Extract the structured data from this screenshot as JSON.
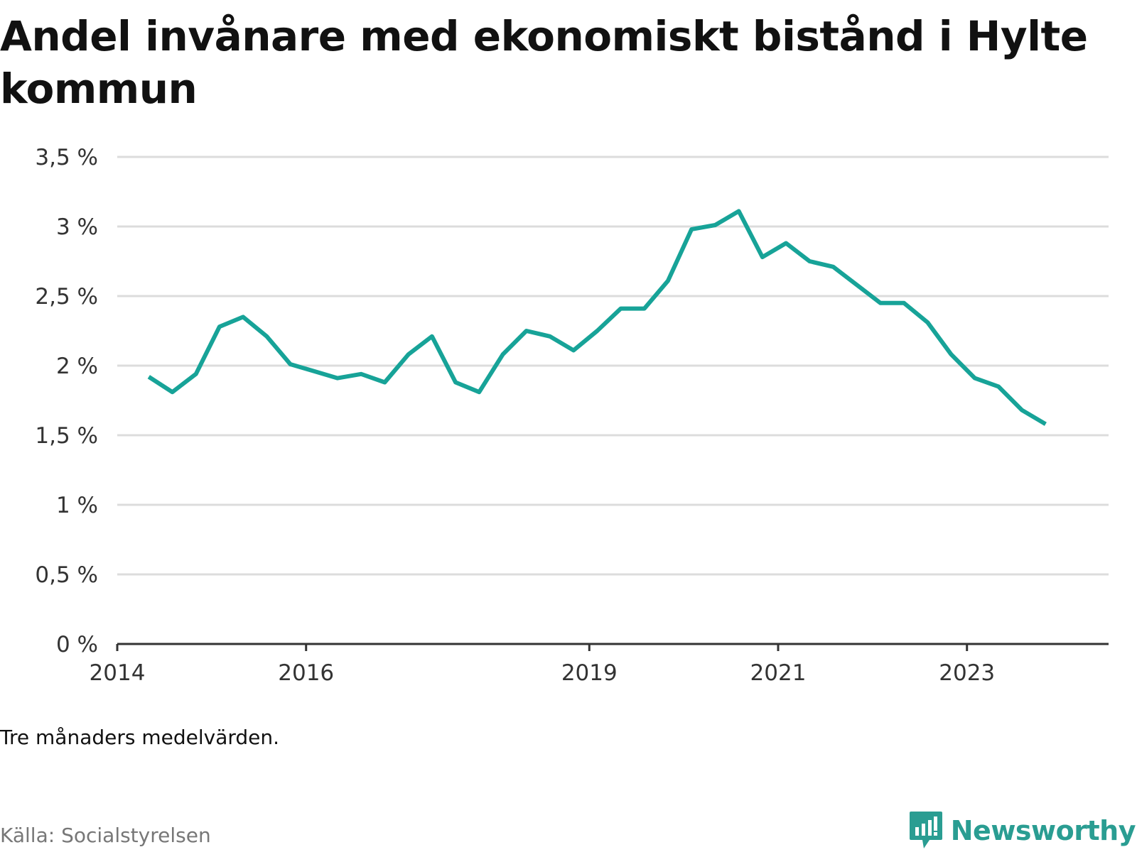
{
  "title": "Andel invånare med ekonomiskt bistånd i Hylte kommun",
  "note": "Tre månaders medelvärden.",
  "source": "Källa: Socialstyrelsen",
  "brand": {
    "name": "Newsworthy",
    "icon": "newsworthy-logo-icon",
    "color": "#2a9d92"
  },
  "chart_data": {
    "type": "line",
    "title": "Andel invånare med ekonomiskt bistånd i Hylte kommun",
    "xlabel": "",
    "ylabel": "",
    "x_ticks": [
      "2014",
      "2016",
      "2019",
      "2021",
      "2023"
    ],
    "y_ticks": [
      "0 %",
      "0,5 %",
      "1 %",
      "1,5 %",
      "2 %",
      "2,5 %",
      "3 %",
      "3,5 %"
    ],
    "ylim": [
      0,
      3.5
    ],
    "xlim": [
      "2014-01",
      "2024-07"
    ],
    "grid": true,
    "legend": "none",
    "line_color": "#17a398",
    "series": [
      {
        "x": [
          "2014-05",
          "2014-08",
          "2014-11",
          "2015-02",
          "2015-05",
          "2015-08",
          "2015-11",
          "2016-02",
          "2016-05",
          "2016-08",
          "2016-11",
          "2017-02",
          "2017-05",
          "2017-08",
          "2017-11",
          "2018-02",
          "2018-05",
          "2018-08",
          "2018-11",
          "2019-02",
          "2019-05",
          "2019-08",
          "2019-11",
          "2020-02",
          "2020-05",
          "2020-08",
          "2020-11",
          "2021-02",
          "2021-05",
          "2021-08",
          "2021-11",
          "2022-02",
          "2022-05",
          "2022-08",
          "2022-11",
          "2023-02",
          "2023-05",
          "2023-08",
          "2023-11"
        ],
        "values": [
          1.92,
          1.81,
          1.94,
          2.28,
          2.35,
          2.21,
          2.01,
          1.96,
          1.91,
          1.94,
          1.88,
          2.08,
          2.21,
          1.88,
          1.81,
          2.08,
          2.25,
          2.21,
          2.11,
          2.25,
          2.41,
          2.41,
          2.61,
          2.98,
          3.01,
          3.11,
          2.78,
          2.88,
          2.75,
          2.71,
          2.58,
          2.45,
          2.45,
          2.31,
          2.08,
          1.91,
          1.85,
          1.68,
          1.58
        ]
      }
    ]
  }
}
